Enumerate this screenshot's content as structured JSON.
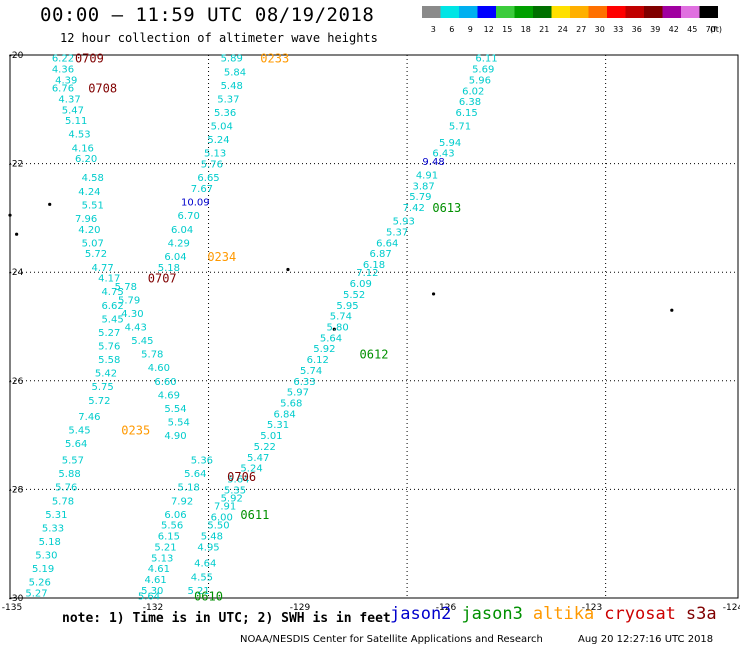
{
  "header": {
    "title": "00:00 – 11:59 UTC 08/19/2018",
    "subtitle": "12 hour collection of altimeter wave heights"
  },
  "color_scale": {
    "labels": [
      "3",
      "6",
      "9",
      "12",
      "15",
      "18",
      "21",
      "24",
      "27",
      "30",
      "33",
      "36",
      "39",
      "42",
      "45",
      "70"
    ],
    "unit": "(ft)",
    "colors": [
      "#8a8a8a",
      "#00e5e5",
      "#00b0f0",
      "#0000ff",
      "#3ccc3c",
      "#00a000",
      "#007000",
      "#ffe000",
      "#ffb000",
      "#ff7000",
      "#ff0000",
      "#c00000",
      "#800000",
      "#a000a0",
      "#e070e0",
      "#000000"
    ]
  },
  "footer": {
    "note": "note: 1) Time is in UTC; 2) SWH is in feet",
    "credit": "NOAA/NESDIS Center for Satellite Applications and Research",
    "timestamp": "Aug 20 12:27:16 UTC 2018"
  },
  "satellites": [
    {
      "name": "jason2",
      "color": "#0000cc"
    },
    {
      "name": "jason3",
      "color": "#009000"
    },
    {
      "name": "altika",
      "color": "#ff9900"
    },
    {
      "name": "cryosat",
      "color": "#cc0000"
    },
    {
      "name": "s3a",
      "color": "#800000"
    }
  ],
  "chart_data": {
    "type": "scatter",
    "title": "00:00 – 11:59 UTC 08/19/2018",
    "subtitle": "12 hour collection of altimeter wave heights",
    "xlabel": "",
    "ylabel": "",
    "xlim": [
      -135,
      -124
    ],
    "ylim": [
      -30,
      -20
    ],
    "x_ticks": [
      "-135",
      "-132",
      "-129",
      "-126",
      "-123",
      "-124"
    ],
    "y_ticks": [
      "-20",
      "-22",
      "-24",
      "-26",
      "-28",
      "-30"
    ],
    "grid": true,
    "value_color": "#00cccc",
    "high_value_color": "#0000cc",
    "time_labels": [
      {
        "text": "0709",
        "lon": -133.8,
        "lat": -20.05,
        "color": "#800000"
      },
      {
        "text": "0233",
        "lon": -131.0,
        "lat": -20.05,
        "color": "#ff9900"
      },
      {
        "text": "0708",
        "lon": -133.6,
        "lat": -20.6,
        "color": "#800000"
      },
      {
        "text": "0613",
        "lon": -128.4,
        "lat": -22.8,
        "color": "#009000"
      },
      {
        "text": "0234",
        "lon": -131.8,
        "lat": -23.7,
        "color": "#ff9900"
      },
      {
        "text": "0707",
        "lon": -132.7,
        "lat": -24.1,
        "color": "#800000"
      },
      {
        "text": "0612",
        "lon": -129.5,
        "lat": -25.5,
        "color": "#009000"
      },
      {
        "text": "0235",
        "lon": -133.1,
        "lat": -26.9,
        "color": "#ff9900"
      },
      {
        "text": "0706",
        "lon": -131.5,
        "lat": -27.75,
        "color": "#800000"
      },
      {
        "text": "0611",
        "lon": -131.3,
        "lat": -28.45,
        "color": "#009000"
      },
      {
        "text": "0610",
        "lon": -132.0,
        "lat": -29.95,
        "color": "#009000"
      }
    ],
    "tracks": [
      {
        "name": "track-west-a",
        "points": [
          {
            "lon": -134.2,
            "lat": -20.05,
            "v": "6.22"
          },
          {
            "lon": -134.2,
            "lat": -20.25,
            "v": "4.36"
          },
          {
            "lon": -134.15,
            "lat": -20.45,
            "v": "4.39"
          },
          {
            "lon": -134.2,
            "lat": -20.6,
            "v": "6.76"
          },
          {
            "lon": -134.1,
            "lat": -20.8,
            "v": "4.37"
          },
          {
            "lon": -134.05,
            "lat": -21.0,
            "v": "5.47"
          },
          {
            "lon": -134.0,
            "lat": -21.2,
            "v": "5.11"
          },
          {
            "lon": -133.95,
            "lat": -21.45,
            "v": "4.53"
          },
          {
            "lon": -133.9,
            "lat": -21.7,
            "v": "4.16"
          },
          {
            "lon": -133.85,
            "lat": -21.9,
            "v": "6.20"
          },
          {
            "lon": -133.75,
            "lat": -22.25,
            "v": "4.58"
          },
          {
            "lon": -133.8,
            "lat": -22.5,
            "v": "4.24"
          },
          {
            "lon": -133.75,
            "lat": -22.75,
            "v": "5.51"
          },
          {
            "lon": -133.85,
            "lat": -23.0,
            "v": "7.96"
          },
          {
            "lon": -133.8,
            "lat": -23.2,
            "v": "4.20"
          },
          {
            "lon": -133.75,
            "lat": -23.45,
            "v": "5.07"
          },
          {
            "lon": -133.7,
            "lat": -23.65,
            "v": "5.72"
          },
          {
            "lon": -133.6,
            "lat": -23.9,
            "v": "4.77"
          },
          {
            "lon": -133.5,
            "lat": -24.1,
            "v": "4.17"
          },
          {
            "lon": -133.45,
            "lat": -24.35,
            "v": "4.75"
          },
          {
            "lon": -133.45,
            "lat": -24.6,
            "v": "6.62"
          },
          {
            "lon": -133.45,
            "lat": -24.85,
            "v": "5.45"
          },
          {
            "lon": -133.5,
            "lat": -25.1,
            "v": "5.27"
          },
          {
            "lon": -133.5,
            "lat": -25.35,
            "v": "5.76"
          },
          {
            "lon": -133.5,
            "lat": -25.6,
            "v": "5.58"
          },
          {
            "lon": -133.55,
            "lat": -25.85,
            "v": "5.42"
          },
          {
            "lon": -133.6,
            "lat": -26.1,
            "v": "5.75"
          },
          {
            "lon": -133.65,
            "lat": -26.35,
            "v": "5.72"
          },
          {
            "lon": -133.8,
            "lat": -26.65,
            "v": "7.46"
          },
          {
            "lon": -133.95,
            "lat": -26.9,
            "v": "5.45"
          },
          {
            "lon": -134.0,
            "lat": -27.15,
            "v": "5.64"
          },
          {
            "lon": -134.05,
            "lat": -27.45,
            "v": "5.57"
          },
          {
            "lon": -134.1,
            "lat": -27.7,
            "v": "5.88"
          },
          {
            "lon": -134.15,
            "lat": -27.95,
            "v": "5.76"
          },
          {
            "lon": -134.2,
            "lat": -28.2,
            "v": "5.78"
          },
          {
            "lon": -134.3,
            "lat": -28.45,
            "v": "5.31"
          },
          {
            "lon": -134.35,
            "lat": -28.7,
            "v": "5.33"
          },
          {
            "lon": -134.4,
            "lat": -28.95,
            "v": "5.18"
          },
          {
            "lon": -134.45,
            "lat": -29.2,
            "v": "5.30"
          },
          {
            "lon": -134.5,
            "lat": -29.45,
            "v": "5.19"
          },
          {
            "lon": -134.55,
            "lat": -29.7,
            "v": "5.26"
          },
          {
            "lon": -134.6,
            "lat": -29.9,
            "v": "5.27"
          }
        ]
      },
      {
        "name": "track-west-b",
        "points": [
          {
            "lon": -133.25,
            "lat": -24.25,
            "v": "5.78"
          },
          {
            "lon": -133.2,
            "lat": -24.5,
            "v": "5.79"
          },
          {
            "lon": -133.15,
            "lat": -24.75,
            "v": "4.30"
          },
          {
            "lon": -133.1,
            "lat": -25.0,
            "v": "4.43"
          },
          {
            "lon": -133.0,
            "lat": -25.25,
            "v": "5.45"
          },
          {
            "lon": -132.85,
            "lat": -25.5,
            "v": "5.78"
          },
          {
            "lon": -132.75,
            "lat": -25.75,
            "v": "4.60"
          },
          {
            "lon": -132.65,
            "lat": -26.0,
            "v": "6.60"
          },
          {
            "lon": -132.6,
            "lat": -26.25,
            "v": "4.69"
          },
          {
            "lon": -132.5,
            "lat": -26.5,
            "v": "5.54"
          },
          {
            "lon": -132.45,
            "lat": -26.75,
            "v": "5.54"
          },
          {
            "lon": -132.5,
            "lat": -27.0,
            "v": "4.90"
          }
        ]
      },
      {
        "name": "track-mid",
        "points": [
          {
            "lon": -131.65,
            "lat": -20.05,
            "v": "5.89"
          },
          {
            "lon": -131.6,
            "lat": -20.3,
            "v": "5.84"
          },
          {
            "lon": -131.65,
            "lat": -20.55,
            "v": "5.48"
          },
          {
            "lon": -131.7,
            "lat": -20.8,
            "v": "5.37"
          },
          {
            "lon": -131.75,
            "lat": -21.05,
            "v": "5.36"
          },
          {
            "lon": -131.8,
            "lat": -21.3,
            "v": "5.04"
          },
          {
            "lon": -131.85,
            "lat": -21.55,
            "v": "5.24"
          },
          {
            "lon": -131.9,
            "lat": -21.8,
            "v": "5.13"
          },
          {
            "lon": -131.95,
            "lat": -22.0,
            "v": "5.76"
          },
          {
            "lon": -132.0,
            "lat": -22.25,
            "v": "6.65"
          },
          {
            "lon": -132.1,
            "lat": -22.45,
            "v": "7.67"
          },
          {
            "lon": -132.2,
            "lat": -22.7,
            "v": "10.09",
            "high": true
          },
          {
            "lon": -132.3,
            "lat": -22.95,
            "v": "6.70"
          },
          {
            "lon": -132.4,
            "lat": -23.2,
            "v": "6.04"
          },
          {
            "lon": -132.45,
            "lat": -23.45,
            "v": "4.29"
          },
          {
            "lon": -132.5,
            "lat": -23.7,
            "v": "6.04"
          },
          {
            "lon": -132.6,
            "lat": -23.9,
            "v": "5.18"
          }
        ]
      },
      {
        "name": "track-east",
        "points": [
          {
            "lon": -127.8,
            "lat": -20.05,
            "v": "6.11"
          },
          {
            "lon": -127.85,
            "lat": -20.25,
            "v": "5.69"
          },
          {
            "lon": -127.9,
            "lat": -20.45,
            "v": "5.96"
          },
          {
            "lon": -128.0,
            "lat": -20.65,
            "v": "6.02"
          },
          {
            "lon": -128.05,
            "lat": -20.85,
            "v": "6.38"
          },
          {
            "lon": -128.1,
            "lat": -21.05,
            "v": "6.15"
          },
          {
            "lon": -128.2,
            "lat": -21.3,
            "v": "5.71"
          },
          {
            "lon": -128.35,
            "lat": -21.6,
            "v": "5.94"
          },
          {
            "lon": -128.45,
            "lat": -21.8,
            "v": "6.43"
          },
          {
            "lon": -128.6,
            "lat": -21.95,
            "v": "9.48",
            "high": true
          },
          {
            "lon": -128.7,
            "lat": -22.2,
            "v": "4.91"
          },
          {
            "lon": -128.75,
            "lat": -22.4,
            "v": "3.87"
          },
          {
            "lon": -128.8,
            "lat": -22.6,
            "v": "5.79"
          },
          {
            "lon": -128.9,
            "lat": -22.8,
            "v": "7.42"
          },
          {
            "lon": -129.05,
            "lat": -23.05,
            "v": "5.93"
          },
          {
            "lon": -129.15,
            "lat": -23.25,
            "v": "5.37"
          },
          {
            "lon": -129.3,
            "lat": -23.45,
            "v": "6.64"
          },
          {
            "lon": -129.4,
            "lat": -23.65,
            "v": "6.87"
          },
          {
            "lon": -129.5,
            "lat": -23.85,
            "v": "6.18"
          },
          {
            "lon": -129.6,
            "lat": -24.0,
            "v": "7.12"
          },
          {
            "lon": -129.7,
            "lat": -24.2,
            "v": "6.09"
          },
          {
            "lon": -129.8,
            "lat": -24.4,
            "v": "5.52"
          },
          {
            "lon": -129.9,
            "lat": -24.6,
            "v": "5.95"
          },
          {
            "lon": -130.0,
            "lat": -24.8,
            "v": "5.74"
          },
          {
            "lon": -130.05,
            "lat": -25.0,
            "v": "5.80"
          },
          {
            "lon": -130.15,
            "lat": -25.2,
            "v": "5.64"
          },
          {
            "lon": -130.25,
            "lat": -25.4,
            "v": "5.92"
          },
          {
            "lon": -130.35,
            "lat": -25.6,
            "v": "6.12"
          },
          {
            "lon": -130.45,
            "lat": -25.8,
            "v": "5.74"
          },
          {
            "lon": -130.55,
            "lat": -26.0,
            "v": "6.33"
          },
          {
            "lon": -130.65,
            "lat": -26.2,
            "v": "5.97"
          },
          {
            "lon": -130.75,
            "lat": -26.4,
            "v": "5.68"
          },
          {
            "lon": -130.85,
            "lat": -26.6,
            "v": "6.84"
          },
          {
            "lon": -130.95,
            "lat": -26.8,
            "v": "5.31"
          },
          {
            "lon": -131.05,
            "lat": -27.0,
            "v": "5.01"
          },
          {
            "lon": -131.15,
            "lat": -27.2,
            "v": "5.22"
          },
          {
            "lon": -131.25,
            "lat": -27.4,
            "v": "5.47"
          },
          {
            "lon": -131.35,
            "lat": -27.6,
            "v": "5.24"
          },
          {
            "lon": -131.55,
            "lat": -27.8,
            "v": "5.64"
          },
          {
            "lon": -131.6,
            "lat": -28.0,
            "v": "5.35"
          },
          {
            "lon": -131.65,
            "lat": -28.15,
            "v": "5.92"
          },
          {
            "lon": -131.75,
            "lat": -28.3,
            "v": "7.91"
          },
          {
            "lon": -131.8,
            "lat": -28.5,
            "v": "6.00"
          },
          {
            "lon": -131.85,
            "lat": -28.65,
            "v": "5.50"
          },
          {
            "lon": -131.95,
            "lat": -28.85,
            "v": "5.48"
          },
          {
            "lon": -132.0,
            "lat": -29.05,
            "v": "4.95"
          },
          {
            "lon": -132.05,
            "lat": -29.35,
            "v": "4.64"
          },
          {
            "lon": -132.1,
            "lat": -29.6,
            "v": "4.55"
          },
          {
            "lon": -132.15,
            "lat": -29.85,
            "v": "5.21"
          }
        ]
      },
      {
        "name": "track-south-mid",
        "points": [
          {
            "lon": -132.1,
            "lat": -27.45,
            "v": "5.36"
          },
          {
            "lon": -132.2,
            "lat": -27.7,
            "v": "5.64"
          },
          {
            "lon": -132.3,
            "lat": -27.95,
            "v": "5.18"
          },
          {
            "lon": -132.4,
            "lat": -28.2,
            "v": "7.92"
          },
          {
            "lon": -132.5,
            "lat": -28.45,
            "v": "6.06"
          },
          {
            "lon": -132.55,
            "lat": -28.65,
            "v": "5.56"
          },
          {
            "lon": -132.6,
            "lat": -28.85,
            "v": "6.15"
          },
          {
            "lon": -132.65,
            "lat": -29.05,
            "v": "5.21"
          },
          {
            "lon": -132.7,
            "lat": -29.25,
            "v": "5.13"
          },
          {
            "lon": -132.75,
            "lat": -29.45,
            "v": "4.61"
          },
          {
            "lon": -132.8,
            "lat": -29.65,
            "v": "4.61"
          },
          {
            "lon": -132.85,
            "lat": -29.85,
            "v": "5.30"
          },
          {
            "lon": -132.9,
            "lat": -29.95,
            "v": "5.64"
          }
        ]
      }
    ],
    "islands": [
      {
        "lon": -134.4,
        "lat": -22.75
      },
      {
        "lon": -134.9,
        "lat": -23.3
      },
      {
        "lon": -130.8,
        "lat": -23.95
      },
      {
        "lon": -128.6,
        "lat": -24.4
      },
      {
        "lon": -125.0,
        "lat": -24.7
      },
      {
        "lon": -130.1,
        "lat": -25.05
      },
      {
        "lon": -135.0,
        "lat": -22.95
      }
    ]
  }
}
